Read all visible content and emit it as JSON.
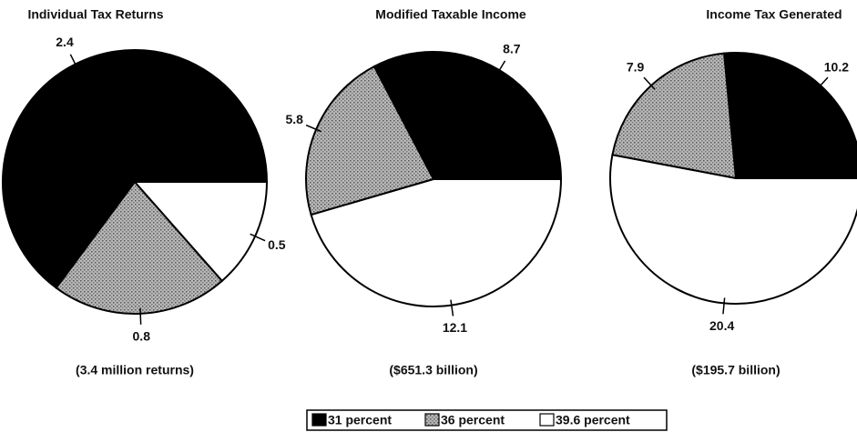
{
  "legend": {
    "categories": [
      "31 percent",
      "36 percent",
      "39.6 percent"
    ],
    "colors": [
      "#000000",
      "#9a9a9a",
      "#ffffff"
    ]
  },
  "chart_data": [
    {
      "type": "pie",
      "title": "Individual Tax Returns",
      "values": [
        2.4,
        0.8,
        0.5
      ],
      "subtitle": "(3.4 million returns)"
    },
    {
      "type": "pie",
      "title": "Modified Taxable Income",
      "values": [
        8.7,
        5.8,
        12.1
      ],
      "subtitle": "($651.3 billion)"
    },
    {
      "type": "pie",
      "title": "Income Tax Generated",
      "values": [
        10.2,
        7.9,
        20.4
      ],
      "subtitle": "($195.7 billion)"
    }
  ]
}
